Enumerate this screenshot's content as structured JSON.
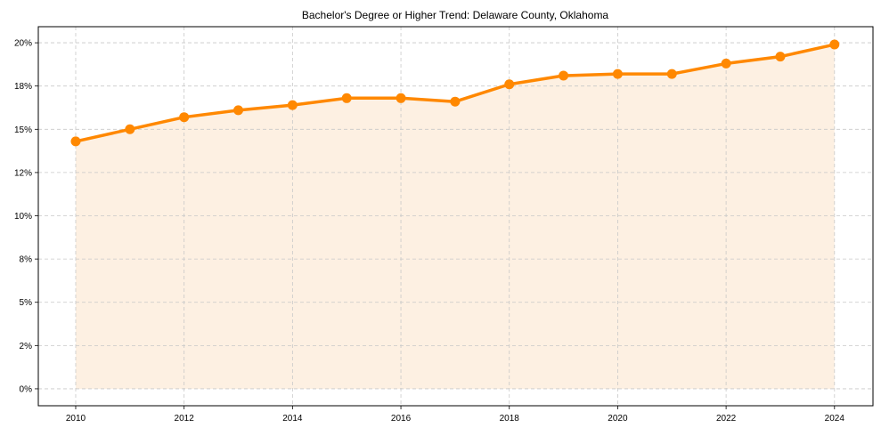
{
  "chart_data": {
    "type": "area",
    "title": "Bachelor's Degree or Higher Trend: Delaware County, Oklahoma",
    "xlabel": "",
    "ylabel": "",
    "x": [
      2010,
      2011,
      2012,
      2013,
      2014,
      2015,
      2016,
      2017,
      2018,
      2019,
      2020,
      2021,
      2022,
      2023,
      2024
    ],
    "series": [
      {
        "name": "Bachelor's Degree or Higher",
        "values": [
          14.3,
          15.0,
          15.7,
          16.1,
          16.4,
          16.8,
          16.8,
          16.6,
          17.6,
          18.1,
          18.2,
          18.2,
          18.8,
          19.2,
          19.9
        ],
        "color": "#ff8800",
        "fill_color": "#fdf0e2"
      }
    ],
    "xlim": [
      2009.31,
      2024.71
    ],
    "ylim": [
      -0.98,
      20.93
    ],
    "yticks": [
      0,
      2.5,
      5,
      7.5,
      10,
      12.5,
      15,
      17.5,
      20
    ],
    "ytick_labels": [
      "0%",
      "2%",
      "5%",
      "8%",
      "10%",
      "12%",
      "15%",
      "18%",
      "20%"
    ],
    "xticks": [
      2010,
      2012,
      2014,
      2016,
      2018,
      2020,
      2022,
      2024
    ],
    "xtick_labels": [
      "2010",
      "2012",
      "2014",
      "2016",
      "2018",
      "2020",
      "2022",
      "2024"
    ],
    "grid": true,
    "legend": null
  }
}
